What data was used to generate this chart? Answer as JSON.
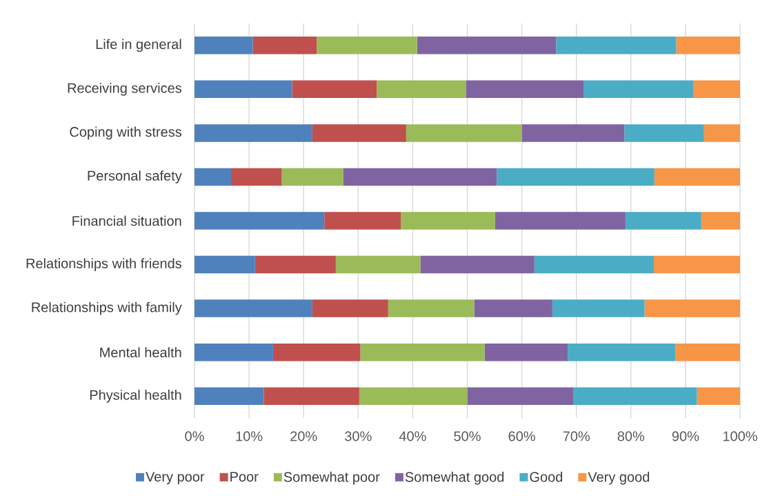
{
  "chart_data": {
    "type": "bar",
    "orientation": "horizontal",
    "stacked": true,
    "categories": [
      "Life in general",
      "Receiving services",
      "Coping with stress",
      "Personal safety",
      "Financial situation",
      "Relationships with friends",
      "Relationships with family",
      "Mental health",
      "Physical health"
    ],
    "series": [
      {
        "name": "Very poor",
        "color": "#4f81bd",
        "values": [
          10.7,
          17.9,
          21.6,
          6.7,
          23.8,
          11.1,
          21.6,
          14.4,
          12.7
        ]
      },
      {
        "name": "Poor",
        "color": "#c0504d",
        "values": [
          11.7,
          15.5,
          17.2,
          9.3,
          14.0,
          14.8,
          13.9,
          16.0,
          17.5
        ]
      },
      {
        "name": "Somewhat poor",
        "color": "#9bbb59",
        "values": [
          18.4,
          16.4,
          21.2,
          11.3,
          17.3,
          15.5,
          15.8,
          22.8,
          19.8
        ]
      },
      {
        "name": "Somewhat good",
        "color": "#8064a2",
        "values": [
          25.5,
          21.5,
          18.8,
          28.1,
          23.9,
          20.9,
          14.3,
          15.2,
          19.5
        ]
      },
      {
        "name": "Good",
        "color": "#4bacc6",
        "values": [
          22.0,
          20.1,
          14.6,
          28.9,
          13.9,
          21.9,
          16.9,
          19.7,
          22.6
        ]
      },
      {
        "name": "Very good",
        "color": "#f79646",
        "values": [
          11.7,
          8.6,
          6.6,
          15.7,
          7.1,
          15.8,
          17.5,
          11.9,
          7.9
        ]
      }
    ],
    "xlim": [
      0,
      100
    ],
    "xticks": [
      {
        "value": 0,
        "label": "0%"
      },
      {
        "value": 10,
        "label": "10%"
      },
      {
        "value": 20,
        "label": "20%"
      },
      {
        "value": 30,
        "label": "30%"
      },
      {
        "value": 40,
        "label": "40%"
      },
      {
        "value": 50,
        "label": "50%"
      },
      {
        "value": 60,
        "label": "60%"
      },
      {
        "value": 70,
        "label": "70%"
      },
      {
        "value": 80,
        "label": "80%"
      },
      {
        "value": 90,
        "label": "90%"
      },
      {
        "value": 100,
        "label": "100%"
      }
    ],
    "grid": "x",
    "legend": "bottom"
  }
}
